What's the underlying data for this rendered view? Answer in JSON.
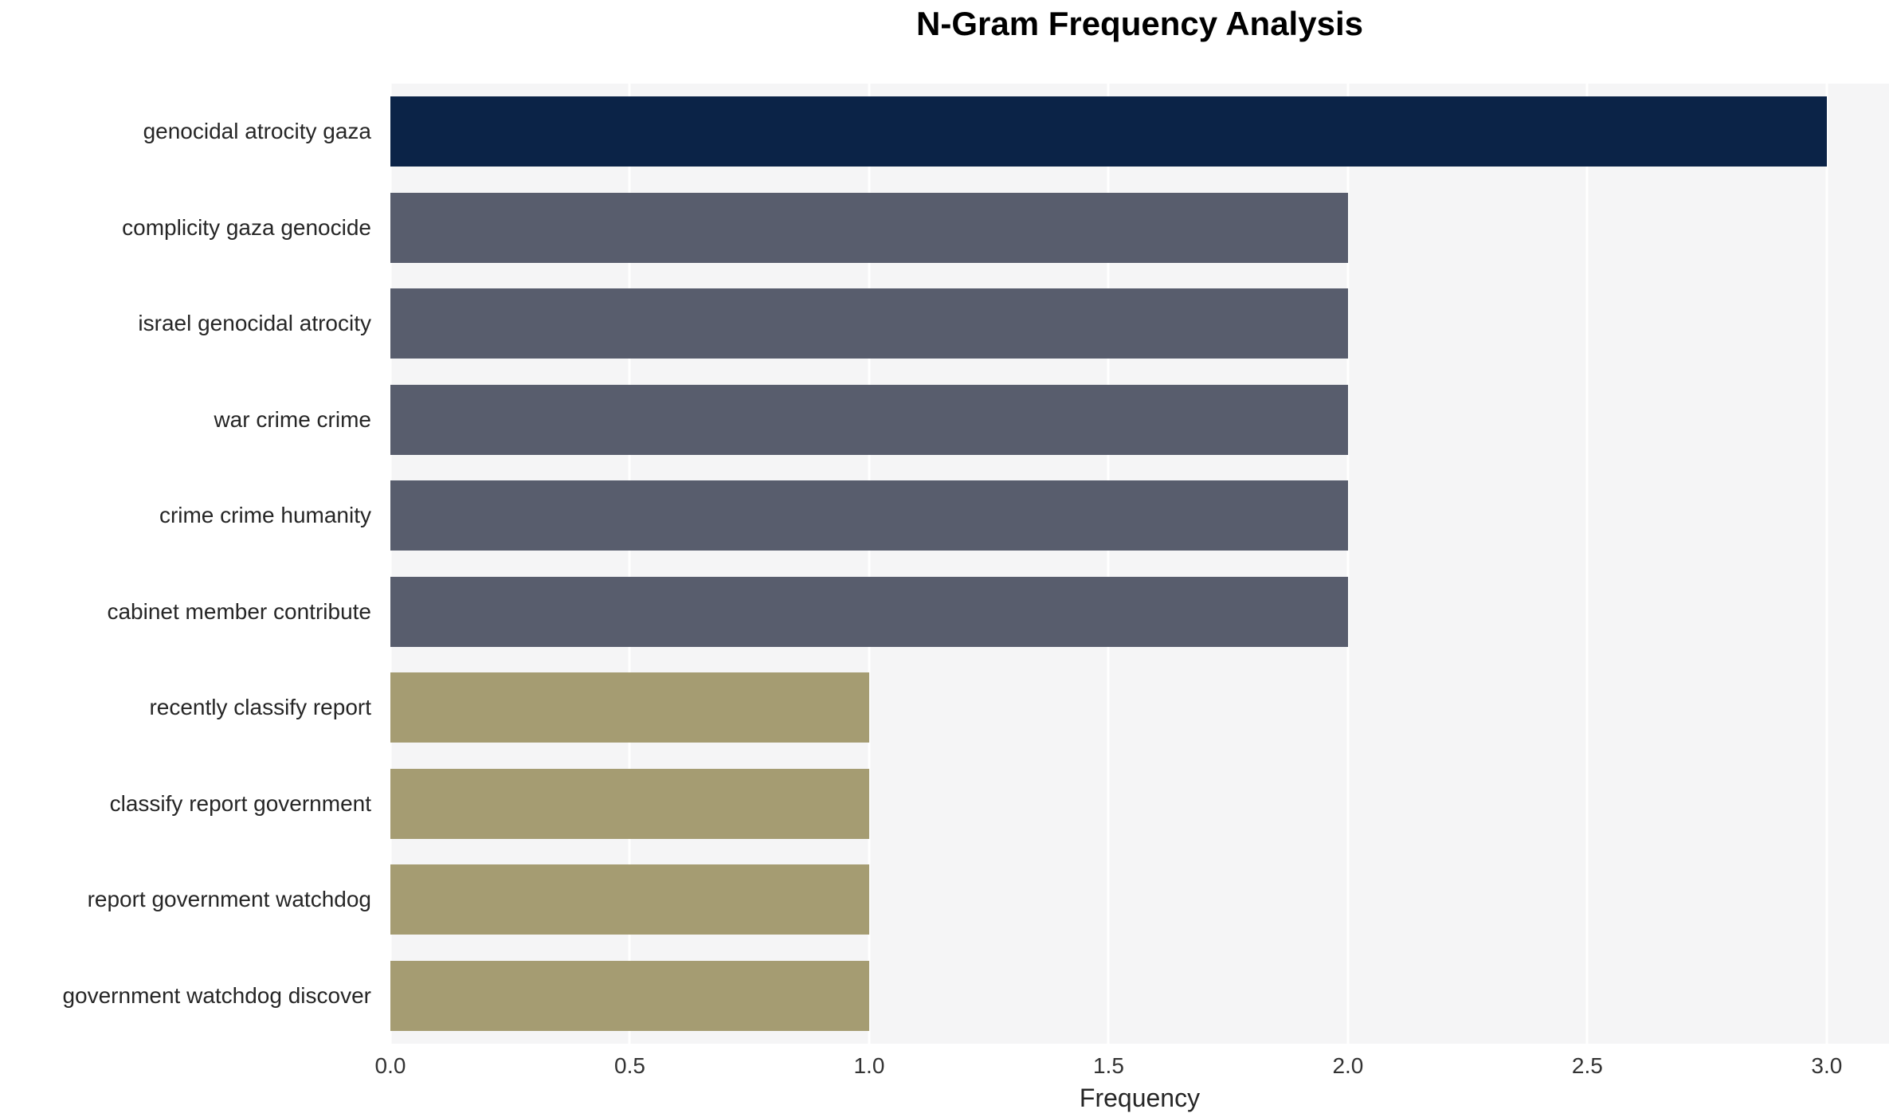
{
  "chart_data": {
    "type": "bar",
    "orientation": "horizontal",
    "title": "N-Gram Frequency Analysis",
    "xlabel": "Frequency",
    "ylabel": "",
    "categories": [
      "genocidal atrocity gaza",
      "complicity gaza genocide",
      "israel genocidal atrocity",
      "war crime crime",
      "crime crime humanity",
      "cabinet member contribute",
      "recently classify report",
      "classify report government",
      "report government watchdog",
      "government watchdog discover"
    ],
    "values": [
      3,
      2,
      2,
      2,
      2,
      2,
      1,
      1,
      1,
      1
    ],
    "bar_colors": [
      "#0b2347",
      "#585d6d",
      "#585d6d",
      "#585d6d",
      "#585d6d",
      "#585d6d",
      "#a59c72",
      "#a59c72",
      "#a59c72",
      "#a59c72"
    ],
    "xticks": [
      0.0,
      0.5,
      1.0,
      1.5,
      2.0,
      2.5,
      3.0
    ],
    "xlim": [
      0,
      3.13
    ],
    "grid": true,
    "legend": "none",
    "plot_background": "#f5f5f6",
    "gridline_color": "#ffffff"
  }
}
